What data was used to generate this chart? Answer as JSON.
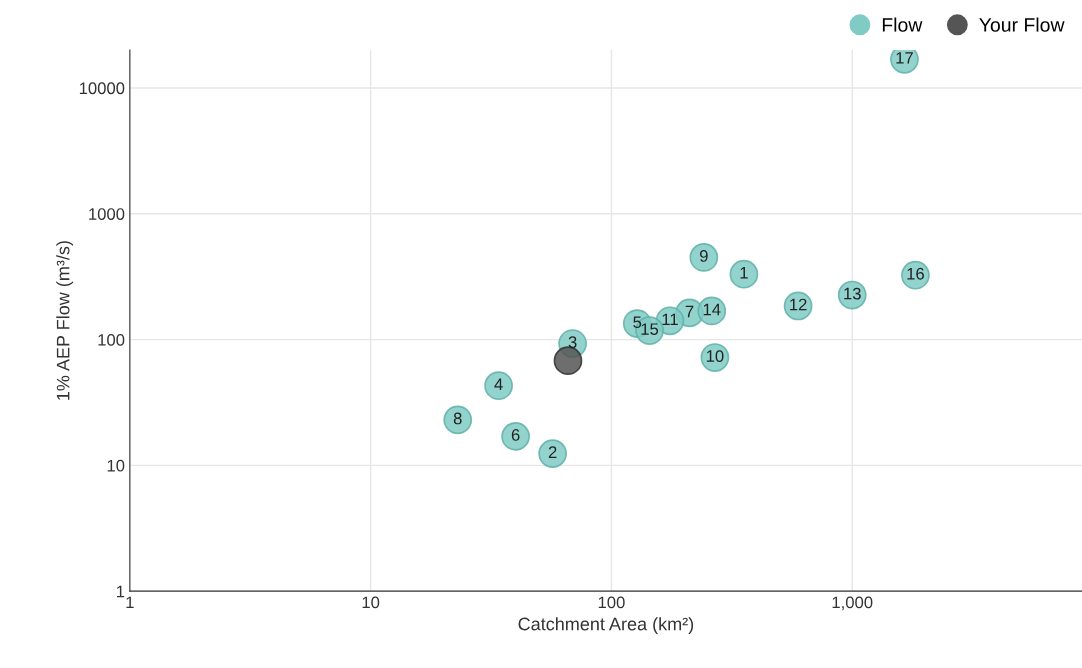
{
  "chart_data": {
    "type": "scatter",
    "xlabel": "Catchment Area (km²)",
    "ylabel": "1% AEP Flow (m³/s)",
    "log": "xy",
    "xlim": [
      1,
      9000
    ],
    "ylim": [
      1,
      20000
    ],
    "xticks": [
      1,
      10,
      100,
      {
        "value": 1000,
        "label": "1,000"
      }
    ],
    "yticks": [
      1,
      10,
      100,
      1000,
      10000
    ],
    "grid": true,
    "legend": "top right",
    "marker": "circle",
    "series": [
      {
        "name": "Flow",
        "color": "#80cbc4",
        "x": [
          355,
          57,
          69,
          34,
          128,
          40,
          211,
          23,
          242,
          269,
          175,
          596,
          1000,
          261,
          144,
          1830,
          1648
        ],
        "values": [
          331,
          12.4,
          93,
          43,
          134,
          17,
          163,
          23,
          450,
          72,
          141,
          185,
          226,
          169,
          118,
          325,
          16900
        ]
      },
      {
        "name": "Your Flow",
        "color": "#555555",
        "x": [
          66
        ],
        "values": [
          68
        ]
      }
    ],
    "annotations": [
      {
        "text": "1",
        "x": 355,
        "y": 331
      },
      {
        "text": "2",
        "x": 57,
        "y": 12.4
      },
      {
        "text": "3",
        "x": 69,
        "y": 93
      },
      {
        "text": "4",
        "x": 34,
        "y": 43
      },
      {
        "text": "5",
        "x": 128,
        "y": 134
      },
      {
        "text": "6",
        "x": 40,
        "y": 17
      },
      {
        "text": "7",
        "x": 211,
        "y": 163
      },
      {
        "text": "8",
        "x": 23,
        "y": 23
      },
      {
        "text": "9",
        "x": 242,
        "y": 450
      },
      {
        "text": "10",
        "x": 269,
        "y": 72
      },
      {
        "text": "11",
        "x": 175,
        "y": 141
      },
      {
        "text": "12",
        "x": 596,
        "y": 185
      },
      {
        "text": "13",
        "x": 1000,
        "y": 226
      },
      {
        "text": "14",
        "x": 261,
        "y": 169
      },
      {
        "text": "15",
        "x": 144,
        "y": 118
      },
      {
        "text": "16",
        "x": 1830,
        "y": 325
      },
      {
        "text": "17",
        "x": 1648,
        "y": 16900
      }
    ]
  }
}
